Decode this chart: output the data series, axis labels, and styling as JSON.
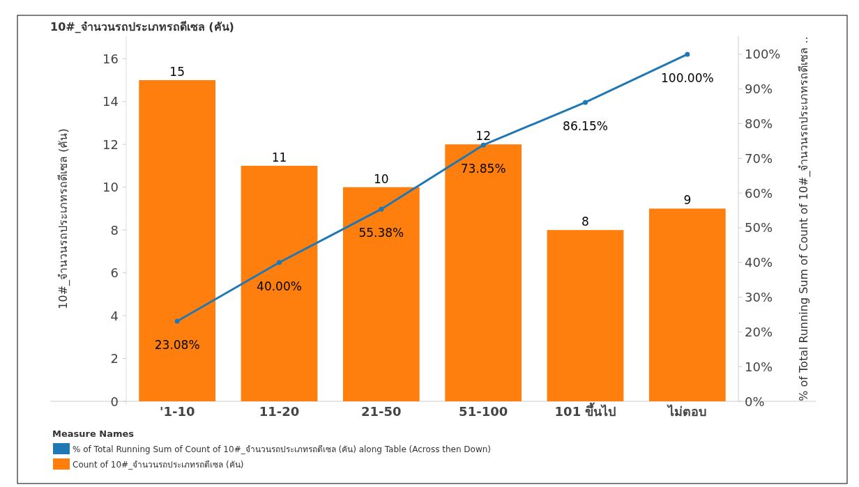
{
  "chart_data": {
    "type": "bar",
    "title": "10#_จำนวนรถประเภทรถดีเซล (คัน)",
    "ylabel": "10#_จำนวนรถประเภทรถดีเซล (คัน)",
    "y2label": "% of Total Running Sum of Count of 10#_จำนวนรถประเภทรถดีเซล ..",
    "legend_title": "Measure Names",
    "legend": "bottom",
    "marker": "circle",
    "categories": [
      "'1-10",
      "11-20",
      "21-50",
      "51-100",
      "101 ขึ้นไป",
      "ไม่ตอบ"
    ],
    "series": [
      {
        "name": "% of Total Running Sum of Count of 10#_จำนวนรถประเภทรถดีเซล (คัน) along Table (Across then Down)",
        "type": "line",
        "axis": "y2",
        "color": "#1f77b4",
        "values": [
          23.08,
          40.0,
          55.38,
          73.85,
          86.15,
          100.0
        ],
        "value_labels": [
          "23.08%",
          "40.00%",
          "55.38%",
          "73.85%",
          "86.15%",
          "100.00%"
        ]
      },
      {
        "name": "Count of 10#_จำนวนรถประเภทรถดีเซล (คัน)",
        "color": "#ff7f0e",
        "values": [
          15,
          11,
          10,
          12,
          8,
          9
        ],
        "value_labels": [
          "15",
          "11",
          "10",
          "12",
          "8",
          "9"
        ]
      }
    ],
    "ylim": [
      0,
      17.05
    ],
    "yticks": [
      0,
      2,
      4,
      6,
      8,
      10,
      12,
      14,
      16
    ],
    "y2lim": [
      0,
      105.2
    ],
    "y2ticks": [
      {
        "value": 0,
        "label": "0%"
      },
      {
        "value": 10,
        "label": "10%"
      },
      {
        "value": 20,
        "label": "20%"
      },
      {
        "value": 30,
        "label": "30%"
      },
      {
        "value": 40,
        "label": "40%"
      },
      {
        "value": 50,
        "label": "50%"
      },
      {
        "value": 60,
        "label": "60%"
      },
      {
        "value": 70,
        "label": "70%"
      },
      {
        "value": 80,
        "label": "80%"
      },
      {
        "value": 90,
        "label": "90%"
      },
      {
        "value": 100,
        "label": "100%"
      }
    ]
  }
}
